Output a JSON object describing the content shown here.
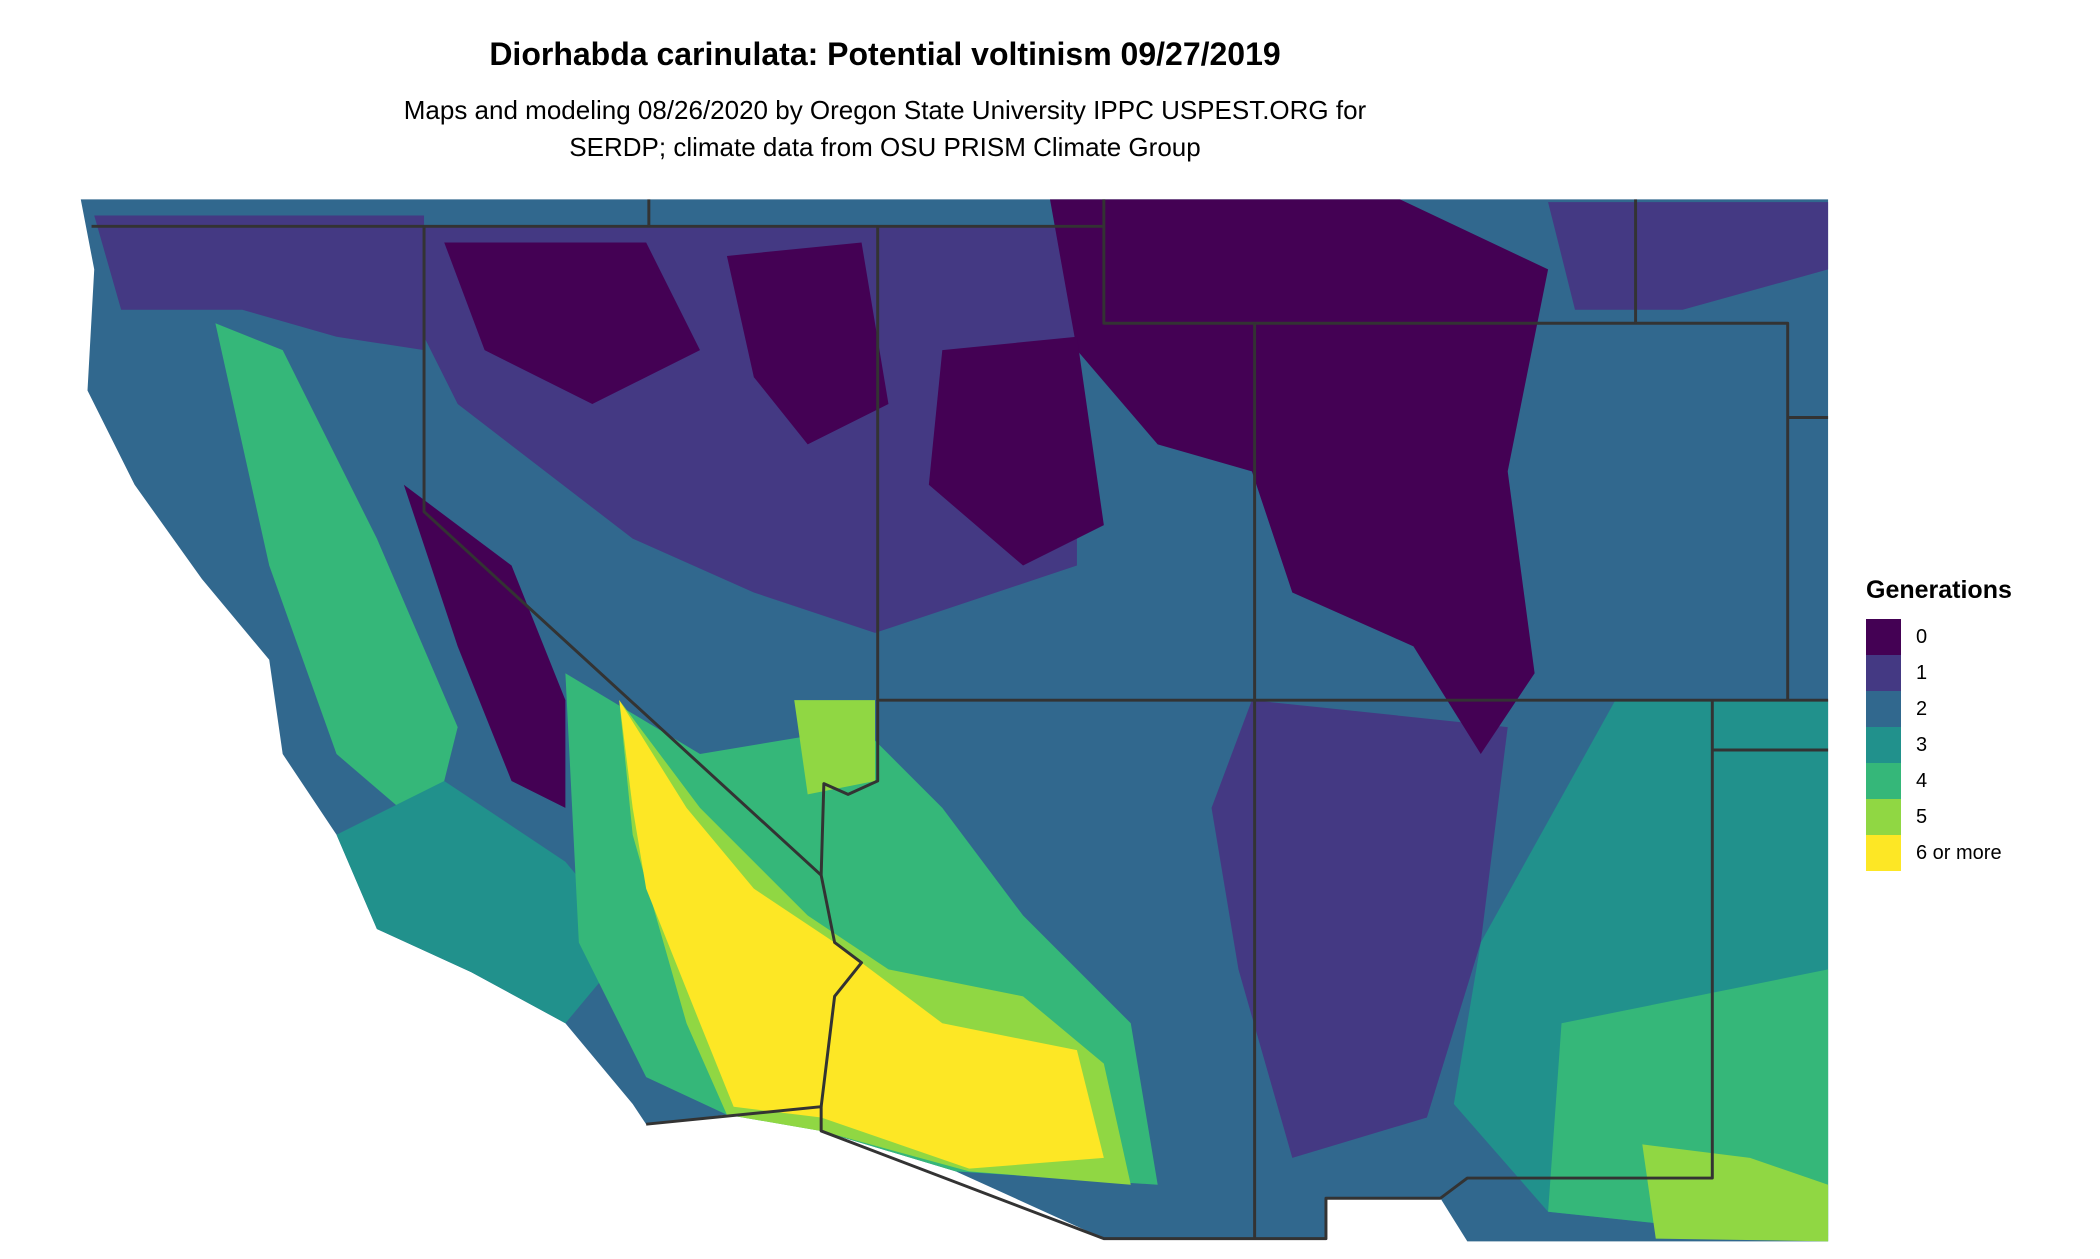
{
  "title": "Diorhabda carinulata: Potential voltinism 09/27/2019",
  "subtitle_line1": "Maps and modeling 08/26/2020 by Oregon State University IPPC USPEST.ORG for",
  "subtitle_line2": "SERDP; climate data from OSU PRISM Climate Group",
  "legend": {
    "title": "Generations",
    "items": [
      {
        "label": "0",
        "color": "#440154"
      },
      {
        "label": "1",
        "color": "#443983"
      },
      {
        "label": "2",
        "color": "#31688e"
      },
      {
        "label": "3",
        "color": "#21918c"
      },
      {
        "label": "4",
        "color": "#35b779"
      },
      {
        "label": "5",
        "color": "#90d743"
      },
      {
        "label": "6 or more",
        "color": "#fde725"
      }
    ]
  },
  "border_color": "#333333"
}
